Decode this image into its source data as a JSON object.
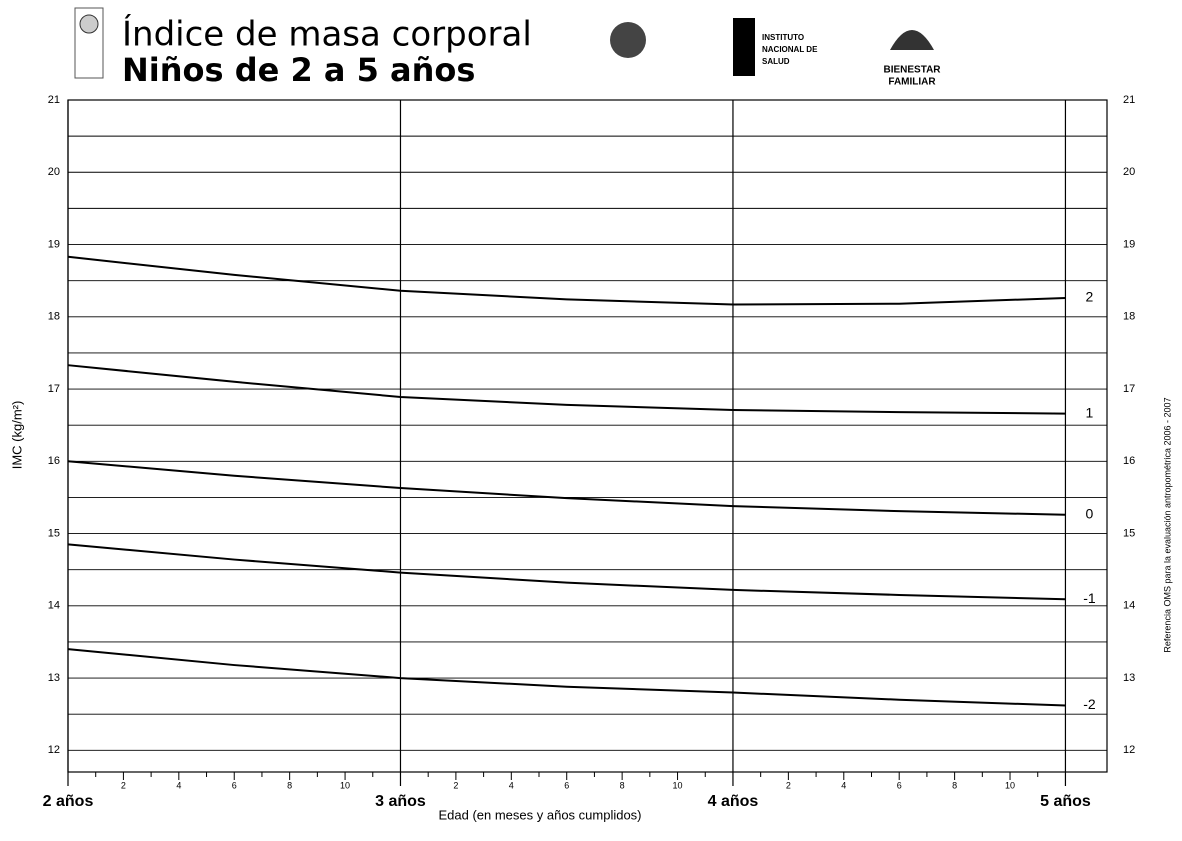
{
  "chart_data": {
    "type": "line",
    "title": "Índice de masa corporal",
    "subtitle": "Niños de 2 a 5 años",
    "logos": [
      "INSTITUTO",
      "NACIONAL DE",
      "SALUD",
      "BIENESTAR",
      "FAMILIAR"
    ],
    "side_note": "Referencia OMS para la evaluación antropométrica 2006 - 2007",
    "ylabel": "IMC (kg/m²)",
    "xlabel": "Edad (en meses y años cumplidos)",
    "x": [
      24,
      30,
      36,
      42,
      48,
      54,
      60
    ],
    "series": [
      {
        "name": "2",
        "color": "#000000",
        "values": [
          18.83,
          18.58,
          18.36,
          18.24,
          18.17,
          18.18,
          18.26
        ]
      },
      {
        "name": "1",
        "color": "#000000",
        "values": [
          17.33,
          17.1,
          16.89,
          16.78,
          16.71,
          16.68,
          16.66
        ]
      },
      {
        "name": "0",
        "color": "#000000",
        "values": [
          16.0,
          15.8,
          15.63,
          15.49,
          15.38,
          15.31,
          15.26
        ]
      },
      {
        "name": "-1",
        "color": "#000000",
        "values": [
          14.85,
          14.64,
          14.46,
          14.32,
          14.22,
          14.15,
          14.09
        ]
      },
      {
        "name": "-2",
        "color": "#000000",
        "values": [
          13.4,
          13.18,
          13.0,
          12.88,
          12.8,
          12.7,
          12.62
        ]
      }
    ],
    "xlim": [
      24,
      61.5
    ],
    "ylim": [
      11.7,
      21
    ],
    "yticks": [
      12,
      13,
      14,
      15,
      16,
      17,
      18,
      19,
      20,
      21
    ],
    "yminor_ticks": [
      12.5,
      13.5,
      14.5,
      15.5,
      16.5,
      17.5,
      18.5,
      19.5,
      20.5
    ],
    "xmajor_ticks": [
      {
        "value": 24,
        "label": "2 años"
      },
      {
        "value": 36,
        "label": "3 años"
      },
      {
        "value": 48,
        "label": "4 años"
      },
      {
        "value": 60,
        "label": "5 años"
      }
    ],
    "xticks": [
      {
        "value": 26,
        "label": "2"
      },
      {
        "value": 28,
        "label": "4"
      },
      {
        "value": 30,
        "label": "6"
      },
      {
        "value": 32,
        "label": "8"
      },
      {
        "value": 34,
        "label": "10"
      },
      {
        "value": 38,
        "label": "2"
      },
      {
        "value": 40,
        "label": "4"
      },
      {
        "value": 42,
        "label": "6"
      },
      {
        "value": 44,
        "label": "8"
      },
      {
        "value": 46,
        "label": "10"
      },
      {
        "value": 50,
        "label": "2"
      },
      {
        "value": 52,
        "label": "4"
      },
      {
        "value": 54,
        "label": "6"
      },
      {
        "value": 56,
        "label": "8"
      },
      {
        "value": 58,
        "label": "10"
      }
    ],
    "xminor_ticks": [
      25,
      27,
      29,
      31,
      33,
      35,
      37,
      39,
      41,
      43,
      45,
      47,
      49,
      51,
      53,
      55,
      57,
      59
    ],
    "grid": true
  }
}
